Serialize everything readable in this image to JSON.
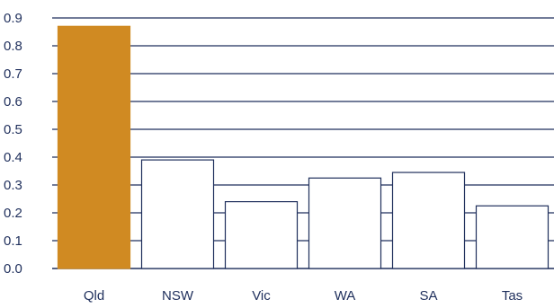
{
  "chart_data": {
    "type": "bar",
    "categories": [
      "Qld",
      "NSW",
      "Vic",
      "WA",
      "SA",
      "Tas"
    ],
    "values": [
      0.87,
      0.39,
      0.24,
      0.325,
      0.345,
      0.225
    ],
    "ylim": [
      0,
      0.9
    ],
    "yticks": [
      "0.0",
      "0.1",
      "0.2",
      "0.3",
      "0.4",
      "0.5",
      "0.6",
      "0.7",
      "0.8",
      "0.9"
    ],
    "grid": true,
    "colors": {
      "highlight": "#d08a22",
      "bar": "#ffffff",
      "outline": "#1f2f5c",
      "gridline": "#1f2f5c",
      "text": "#1f2f5c"
    },
    "highlight_category": "Qld"
  }
}
